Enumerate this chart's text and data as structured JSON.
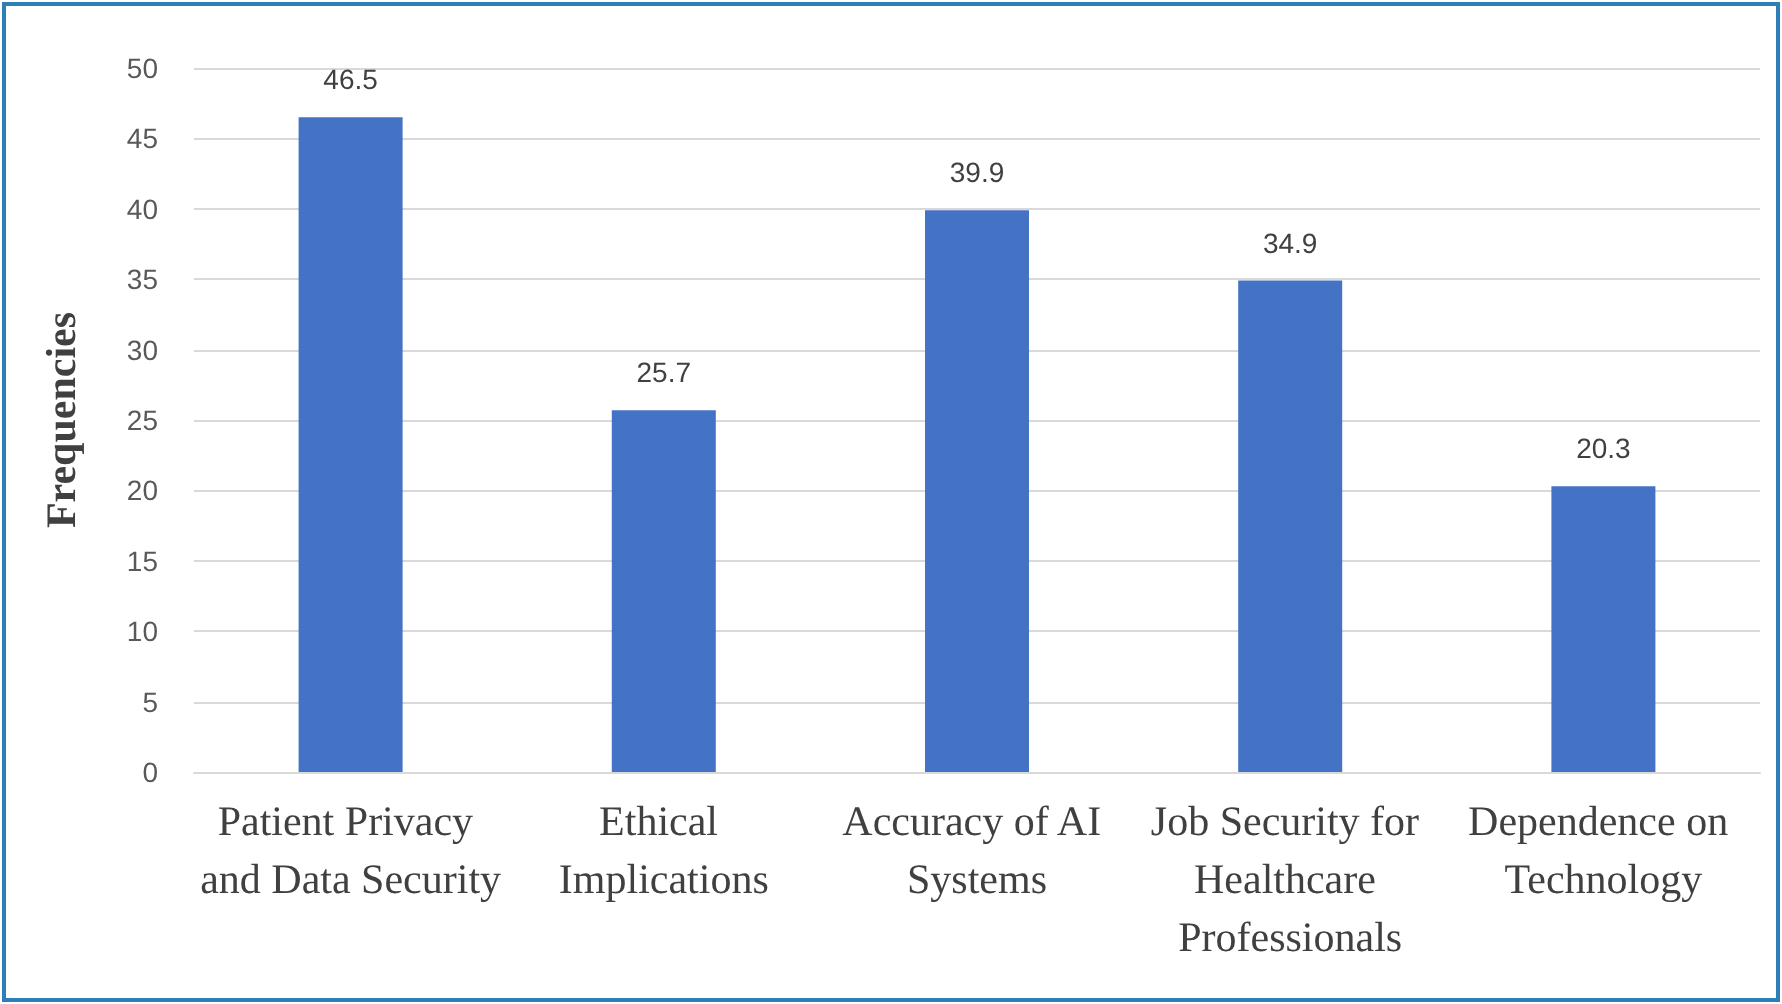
{
  "chart_data": {
    "type": "bar",
    "ylabel": "Frequencies",
    "categories": [
      "Patient Privacy and Data Security",
      "Ethical Implications",
      "Accuracy of AI Systems",
      "Job Security for Healthcare Professionals",
      "Dependence on Technology"
    ],
    "values": [
      46.5,
      25.7,
      39.9,
      34.9,
      20.3
    ],
    "color": "#4472c4",
    "ylim": [
      0,
      50
    ],
    "yticks": [
      0,
      5,
      10,
      15,
      20,
      25,
      30,
      35,
      40,
      45,
      50
    ],
    "grid": "y",
    "data_labels": true
  }
}
